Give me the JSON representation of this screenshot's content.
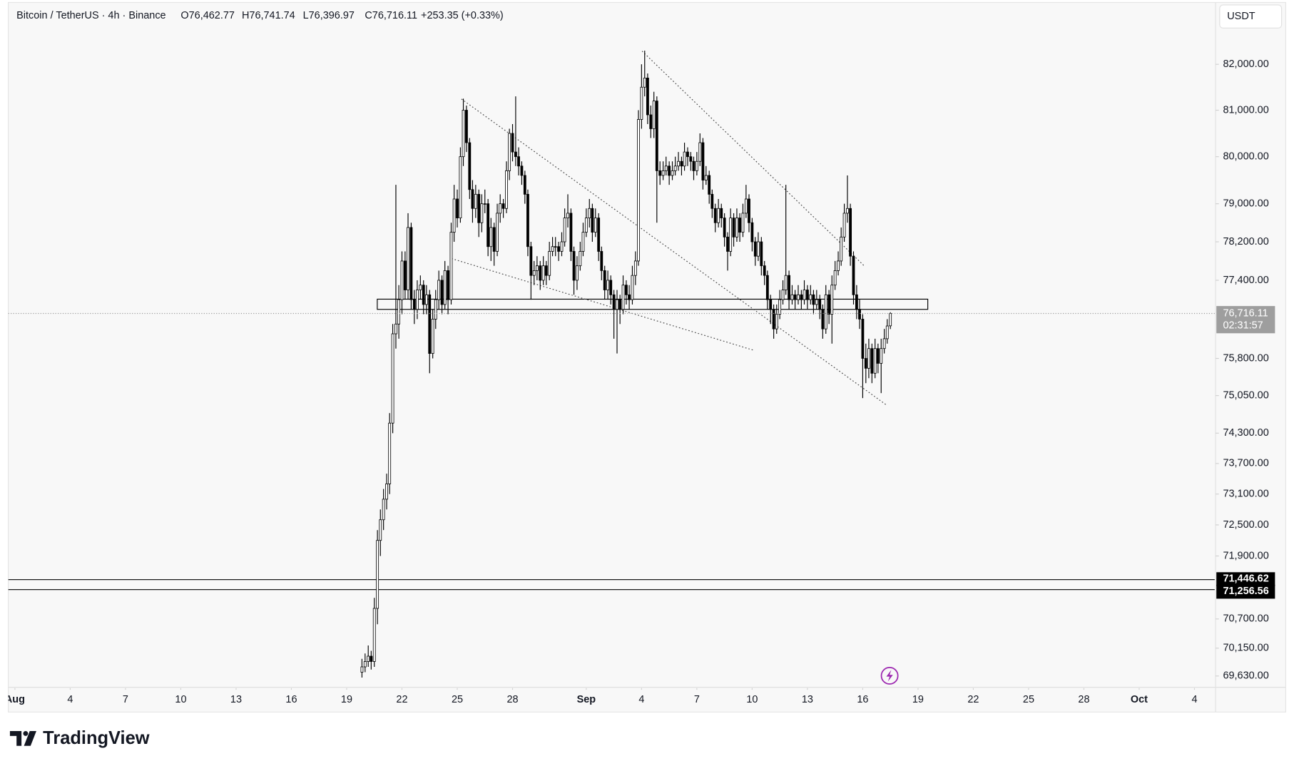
{
  "chart_data": {
    "type": "candlestick",
    "symbol": "Bitcoin / TetherUS · 4h · Binance",
    "ohlc_labels": [
      "O76,462.77",
      "H76,741.74",
      "L76,396.97",
      "C76,716.11"
    ],
    "change_label": "+253.35 (+0.33%)",
    "currency": "USDT",
    "brand": "TradingView",
    "log": true,
    "grid": false,
    "up_color": "#ffffff",
    "down_color": "#000000",
    "wick_color": "#000000",
    "xlim": [
      -0.36,
      65.1
    ],
    "xticks": [
      {
        "value": 0,
        "label": "Aug"
      },
      {
        "value": 3,
        "label": "4"
      },
      {
        "value": 6,
        "label": "7"
      },
      {
        "value": 9,
        "label": "10"
      },
      {
        "value": 12,
        "label": "13"
      },
      {
        "value": 15,
        "label": "16"
      },
      {
        "value": 18,
        "label": "19"
      },
      {
        "value": 21,
        "label": "22"
      },
      {
        "value": 24,
        "label": "25"
      },
      {
        "value": 27,
        "label": "28"
      },
      {
        "value": 31,
        "label": "Sep"
      },
      {
        "value": 34,
        "label": "4"
      },
      {
        "value": 37,
        "label": "7"
      },
      {
        "value": 40,
        "label": "10"
      },
      {
        "value": 43,
        "label": "13"
      },
      {
        "value": 46,
        "label": "16"
      },
      {
        "value": 49,
        "label": "19"
      },
      {
        "value": 52,
        "label": "22"
      },
      {
        "value": 55,
        "label": "25"
      },
      {
        "value": 58,
        "label": "28"
      },
      {
        "value": 61,
        "label": "Oct"
      },
      {
        "value": 64,
        "label": "4"
      }
    ],
    "ylim": [
      69420,
      83330
    ],
    "yticks": [
      {
        "value": 82000,
        "label": "82,000.00"
      },
      {
        "value": 81000,
        "label": "81,000.00"
      },
      {
        "value": 80000,
        "label": "80,000.00"
      },
      {
        "value": 79000,
        "label": "79,000.00"
      },
      {
        "value": 78200,
        "label": "78,200.00"
      },
      {
        "value": 77400,
        "label": "77,400.00"
      },
      {
        "value": 75800,
        "label": "75,800.00"
      },
      {
        "value": 75050,
        "label": "75,050.00"
      },
      {
        "value": 74300,
        "label": "74,300.00"
      },
      {
        "value": 73700,
        "label": "73,700.00"
      },
      {
        "value": 73100,
        "label": "73,100.00"
      },
      {
        "value": 72500,
        "label": "72,500.00"
      },
      {
        "value": 71900,
        "label": "71,900.00"
      },
      {
        "value": 70700,
        "label": "70,700.00"
      },
      {
        "value": 70150,
        "label": "70,150.00"
      },
      {
        "value": 69630,
        "label": "69,630.00"
      }
    ],
    "last_price": 76716.11,
    "last_price_label": "76,716.11",
    "countdown": "02:31:57",
    "hlines": [
      71446.62,
      71256.56
    ],
    "hline_labels": [
      "71,446.62",
      "71,256.56"
    ],
    "zone": {
      "x": [
        19.66,
        49.53
      ],
      "y": [
        76800,
        77010
      ]
    },
    "trendlines": [
      {
        "x": [
          24.23,
          47.33
        ],
        "y": [
          81242,
          74850
        ]
      },
      {
        "x": [
          34.03,
          46.13
        ],
        "y": [
          82290,
          77680
        ]
      },
      {
        "x": [
          23.69,
          40.04
        ],
        "y": [
          77850,
          75970
        ]
      }
    ],
    "x": [
      18.83,
      19,
      19.17,
      19.33,
      19.5,
      19.67,
      19.83,
      20,
      20.17,
      20.33,
      20.5,
      20.67,
      20.83,
      21,
      21.17,
      21.33,
      21.5,
      21.67,
      21.83,
      22,
      22.17,
      22.33,
      22.5,
      22.67,
      22.83,
      23,
      23.17,
      23.33,
      23.5,
      23.67,
      23.83,
      24,
      24.17,
      24.33,
      24.5,
      24.67,
      24.83,
      25,
      25.17,
      25.33,
      25.5,
      25.67,
      25.83,
      26,
      26.17,
      26.33,
      26.5,
      26.67,
      26.83,
      27,
      27.17,
      27.33,
      27.5,
      27.67,
      27.83,
      28,
      28.17,
      28.33,
      28.5,
      28.67,
      28.83,
      29,
      29.17,
      29.33,
      29.5,
      29.67,
      29.83,
      30,
      30.17,
      30.33,
      30.5,
      30.67,
      30.83,
      31,
      31.17,
      31.33,
      31.5,
      31.67,
      31.83,
      32,
      32.17,
      32.33,
      32.5,
      32.67,
      32.83,
      33,
      33.17,
      33.33,
      33.5,
      33.67,
      33.83,
      34,
      34.17,
      34.33,
      34.5,
      34.67,
      34.83,
      35,
      35.17,
      35.33,
      35.5,
      35.67,
      35.83,
      36,
      36.17,
      36.33,
      36.5,
      36.67,
      36.83,
      37,
      37.17,
      37.33,
      37.5,
      37.67,
      37.83,
      38,
      38.17,
      38.33,
      38.5,
      38.67,
      38.83,
      39,
      39.17,
      39.33,
      39.5,
      39.67,
      39.83,
      40,
      40.17,
      40.33,
      40.5,
      40.67,
      40.83,
      41,
      41.17,
      41.33,
      41.5,
      41.67,
      41.83,
      42,
      42.17,
      42.33,
      42.5,
      42.67,
      42.83,
      43,
      43.17,
      43.33,
      43.5,
      43.67,
      43.83,
      44,
      44.17,
      44.33,
      44.5,
      44.67,
      44.83,
      45,
      45.17,
      45.33,
      45.5,
      45.67,
      45.83,
      46,
      46.17,
      46.33,
      46.5,
      46.67,
      46.83,
      47,
      47.17,
      47.33,
      47.5
    ],
    "candles": [
      [
        69700,
        69950,
        69600,
        69800
      ],
      [
        69800,
        70050,
        69700,
        69900
      ],
      [
        69900,
        70200,
        69800,
        70000
      ],
      [
        70000,
        70100,
        69750,
        69900
      ],
      [
        69900,
        71100,
        69800,
        70900
      ],
      [
        70900,
        72400,
        70600,
        72200
      ],
      [
        72200,
        72800,
        71900,
        72600
      ],
      [
        72600,
        73200,
        72400,
        73000
      ],
      [
        73000,
        73500,
        72800,
        73300
      ],
      [
        73300,
        74700,
        73100,
        74500
      ],
      [
        74500,
        76500,
        74300,
        76300
      ],
      [
        76300,
        79400,
        76000,
        76500
      ],
      [
        76500,
        77300,
        76200,
        77000
      ],
      [
        77000,
        78000,
        76700,
        77800
      ],
      [
        77800,
        78000,
        77000,
        77200
      ],
      [
        77200,
        78800,
        77000,
        78500
      ],
      [
        78500,
        78600,
        76800,
        77000
      ],
      [
        77000,
        77200,
        76500,
        76800
      ],
      [
        76800,
        77400,
        76600,
        77200
      ],
      [
        77200,
        77500,
        77000,
        77300
      ],
      [
        77300,
        77400,
        76700,
        76900
      ],
      [
        76900,
        77300,
        76700,
        77100
      ],
      [
        77100,
        77200,
        75500,
        75900
      ],
      [
        75900,
        76800,
        75800,
        76600
      ],
      [
        76600,
        77200,
        76400,
        77000
      ],
      [
        77000,
        77600,
        76800,
        77400
      ],
      [
        77400,
        77500,
        76700,
        76900
      ],
      [
        76900,
        77800,
        76800,
        77600
      ],
      [
        77600,
        77700,
        76700,
        77000
      ],
      [
        77000,
        78600,
        76900,
        78400
      ],
      [
        78400,
        79400,
        78200,
        79100
      ],
      [
        79100,
        79300,
        78500,
        78700
      ],
      [
        78700,
        80200,
        78600,
        80000
      ],
      [
        80000,
        81250,
        79800,
        81000
      ],
      [
        81000,
        81100,
        80100,
        80300
      ],
      [
        80300,
        80400,
        79100,
        79300
      ],
      [
        79300,
        79500,
        78600,
        78900
      ],
      [
        78900,
        79400,
        78700,
        79200
      ],
      [
        79200,
        79300,
        78300,
        78600
      ],
      [
        78600,
        79200,
        78400,
        79000
      ],
      [
        79000,
        79300,
        78800,
        79000
      ],
      [
        79000,
        79100,
        77900,
        78100
      ],
      [
        78100,
        78700,
        77800,
        78500
      ],
      [
        78500,
        78600,
        77700,
        78000
      ],
      [
        78000,
        79000,
        77900,
        78800
      ],
      [
        78800,
        79200,
        78600,
        79000
      ],
      [
        79000,
        79100,
        78700,
        78900
      ],
      [
        78900,
        79900,
        78800,
        79700
      ],
      [
        79700,
        80600,
        79500,
        80500
      ],
      [
        80500,
        80700,
        79900,
        80100
      ],
      [
        80100,
        81300,
        79800,
        80000
      ],
      [
        80000,
        80200,
        79600,
        79800
      ],
      [
        79800,
        79900,
        79400,
        79600
      ],
      [
        79600,
        79700,
        79000,
        79200
      ],
      [
        79200,
        79300,
        77900,
        78100
      ],
      [
        78100,
        78200,
        77000,
        77500
      ],
      [
        77500,
        77800,
        77300,
        77600
      ],
      [
        77600,
        77900,
        77400,
        77700
      ],
      [
        77700,
        77800,
        77200,
        77400
      ],
      [
        77400,
        77900,
        77300,
        77700
      ],
      [
        77700,
        77800,
        77300,
        77500
      ],
      [
        77500,
        78200,
        77400,
        78000
      ],
      [
        78000,
        78300,
        77900,
        78100
      ],
      [
        78100,
        78300,
        77900,
        78100
      ],
      [
        78100,
        78200,
        77800,
        78000
      ],
      [
        78000,
        78400,
        77900,
        78200
      ],
      [
        78200,
        78900,
        78100,
        78700
      ],
      [
        78700,
        79200,
        78500,
        78800
      ],
      [
        78800,
        78900,
        77800,
        78000
      ],
      [
        78000,
        78100,
        77100,
        77400
      ],
      [
        77400,
        77900,
        77200,
        77700
      ],
      [
        77700,
        78200,
        77600,
        78000
      ],
      [
        78000,
        78600,
        77900,
        78400
      ],
      [
        78400,
        78900,
        78300,
        78700
      ],
      [
        78700,
        79100,
        78500,
        78900
      ],
      [
        78900,
        79000,
        78200,
        78400
      ],
      [
        78400,
        78900,
        78300,
        78700
      ],
      [
        78700,
        78800,
        77800,
        78000
      ],
      [
        78000,
        78100,
        77400,
        77600
      ],
      [
        77600,
        77700,
        77000,
        77200
      ],
      [
        77200,
        77600,
        77000,
        77400
      ],
      [
        77400,
        77500,
        76900,
        77100
      ],
      [
        77100,
        77200,
        76200,
        76800
      ],
      [
        76800,
        77200,
        75900,
        77000
      ],
      [
        77000,
        77100,
        76500,
        76800
      ],
      [
        76800,
        77500,
        76700,
        77300
      ],
      [
        77300,
        77400,
        76900,
        77100
      ],
      [
        77100,
        77300,
        76800,
        77000
      ],
      [
        77000,
        77700,
        76900,
        77500
      ],
      [
        77500,
        78000,
        77300,
        77800
      ],
      [
        77800,
        81000,
        77700,
        80800
      ],
      [
        80800,
        82000,
        80600,
        81500
      ],
      [
        81500,
        82300,
        81300,
        81700
      ],
      [
        81700,
        81800,
        80700,
        80900
      ],
      [
        80900,
        81100,
        80400,
        80600
      ],
      [
        80600,
        81400,
        80400,
        81200
      ],
      [
        81200,
        81300,
        78600,
        79700
      ],
      [
        79700,
        79900,
        79400,
        79600
      ],
      [
        79600,
        79900,
        79500,
        79700
      ],
      [
        79700,
        80000,
        79600,
        79800
      ],
      [
        79800,
        79900,
        79400,
        79600
      ],
      [
        79600,
        79900,
        79500,
        79700
      ],
      [
        79700,
        80000,
        79600,
        79800
      ],
      [
        79800,
        80100,
        79700,
        79900
      ],
      [
        79900,
        80000,
        79600,
        79800
      ],
      [
        79800,
        80300,
        79700,
        80100
      ],
      [
        80100,
        80200,
        79800,
        80000
      ],
      [
        80000,
        80100,
        79700,
        79900
      ],
      [
        79900,
        80000,
        79500,
        79700
      ],
      [
        79700,
        80100,
        79600,
        79900
      ],
      [
        79900,
        80500,
        79800,
        80300
      ],
      [
        80300,
        80400,
        79300,
        79500
      ],
      [
        79500,
        79800,
        79400,
        79600
      ],
      [
        79600,
        79700,
        79000,
        79200
      ],
      [
        79200,
        79300,
        78700,
        78900
      ],
      [
        78900,
        79000,
        78400,
        78600
      ],
      [
        78600,
        79100,
        78500,
        78900
      ],
      [
        78900,
        79000,
        78500,
        78700
      ],
      [
        78700,
        78800,
        78100,
        78300
      ],
      [
        78300,
        78400,
        77600,
        78000
      ],
      [
        78000,
        78900,
        77900,
        78700
      ],
      [
        78700,
        78800,
        78100,
        78300
      ],
      [
        78300,
        78900,
        78200,
        78700
      ],
      [
        78700,
        78800,
        78200,
        78400
      ],
      [
        78400,
        79000,
        78300,
        78800
      ],
      [
        78800,
        79400,
        78700,
        79100
      ],
      [
        79100,
        79200,
        78400,
        78600
      ],
      [
        78600,
        78700,
        78000,
        78200
      ],
      [
        78200,
        78300,
        77700,
        77900
      ],
      [
        77900,
        78400,
        77800,
        78200
      ],
      [
        78200,
        78300,
        77500,
        77700
      ],
      [
        77700,
        77800,
        77300,
        77500
      ],
      [
        77500,
        77600,
        76800,
        77000
      ],
      [
        77000,
        77100,
        76500,
        76800
      ],
      [
        76800,
        76900,
        76200,
        76400
      ],
      [
        76400,
        76900,
        76300,
        76700
      ],
      [
        76700,
        77200,
        76600,
        77000
      ],
      [
        77000,
        77400,
        76900,
        77200
      ],
      [
        77200,
        79400,
        77100,
        77500
      ],
      [
        77500,
        77600,
        76800,
        77000
      ],
      [
        77000,
        77300,
        76900,
        77100
      ],
      [
        77100,
        77200,
        76800,
        77000
      ],
      [
        77000,
        77300,
        76900,
        77100
      ],
      [
        77100,
        77200,
        76800,
        77000
      ],
      [
        77000,
        77400,
        76900,
        77200
      ],
      [
        77200,
        77300,
        76800,
        77000
      ],
      [
        77000,
        77300,
        76900,
        77100
      ],
      [
        77100,
        77200,
        76700,
        76900
      ],
      [
        76900,
        77200,
        76800,
        77000
      ],
      [
        77000,
        77100,
        76600,
        76800
      ],
      [
        76800,
        76900,
        76200,
        76400
      ],
      [
        76400,
        77300,
        76300,
        77100
      ],
      [
        77100,
        77200,
        76500,
        76700
      ],
      [
        76700,
        77500,
        76100,
        77300
      ],
      [
        77300,
        77800,
        77200,
        77600
      ],
      [
        77600,
        78000,
        77500,
        77800
      ],
      [
        77800,
        78500,
        77700,
        78300
      ],
      [
        78300,
        79000,
        78200,
        78800
      ],
      [
        78800,
        79600,
        78600,
        78900
      ],
      [
        78900,
        79000,
        77700,
        77900
      ],
      [
        77900,
        78000,
        76900,
        77100
      ],
      [
        77100,
        77300,
        76600,
        76800
      ],
      [
        76800,
        77000,
        76400,
        76600
      ],
      [
        76600,
        76700,
        75000,
        75800
      ],
      [
        75800,
        76100,
        75300,
        75600
      ],
      [
        75600,
        76200,
        75400,
        76000
      ],
      [
        76000,
        76100,
        75300,
        75500
      ],
      [
        75500,
        76200,
        75400,
        76000
      ],
      [
        76000,
        76100,
        75500,
        75700
      ],
      [
        75700,
        76200,
        75100,
        76000
      ],
      [
        76000,
        76400,
        75900,
        76200
      ],
      [
        76200,
        76600,
        76100,
        76460
      ],
      [
        76462.77,
        76741.74,
        76396.97,
        76716.11
      ]
    ]
  }
}
